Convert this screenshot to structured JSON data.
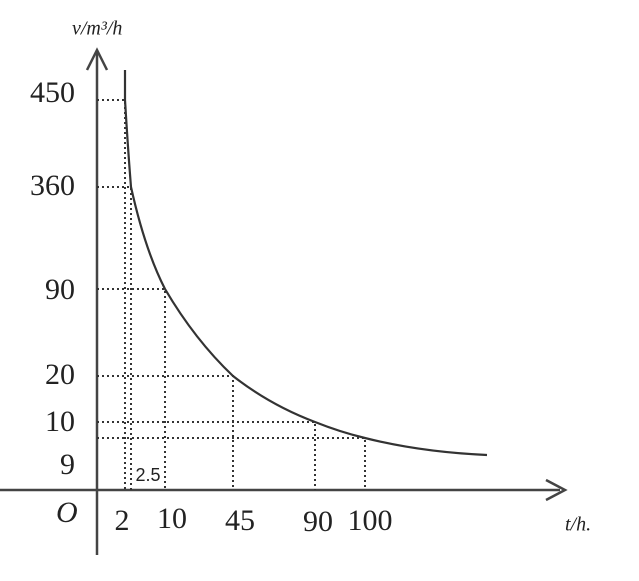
{
  "y_axis_label": "v/m³/h",
  "x_axis_label": "t/h.",
  "origin": "O",
  "y_ticks": [
    "450",
    "360",
    "90",
    "20",
    "10",
    "9"
  ],
  "x_ticks": [
    "2",
    "10",
    "45",
    "90",
    "100"
  ],
  "point_label": "2.5"
}
